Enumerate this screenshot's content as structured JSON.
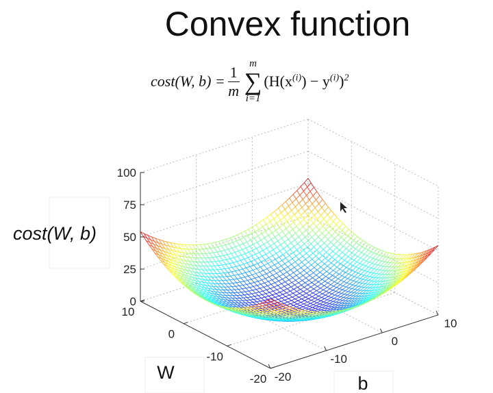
{
  "title": "Convex function",
  "formula": {
    "lhs": "cost(W, b) =",
    "numerator": "1",
    "denominator": "m",
    "sum_top": "m",
    "sum_sym": "∑",
    "sum_bottom": "i=1",
    "body_1": "(H(x",
    "sup_1": "(i)",
    "body_2": ") − y",
    "sup_2": "(i)",
    "body_3": ")",
    "sup_3": "2"
  },
  "plot": {
    "z_label": "cost(W, b)",
    "w_label": "W",
    "b_label": "b",
    "zticks": [
      0,
      25,
      50,
      75,
      100
    ],
    "wticks": [
      10,
      0,
      -10,
      -20
    ],
    "bticks": [
      -20,
      -10,
      0,
      10
    ]
  }
}
